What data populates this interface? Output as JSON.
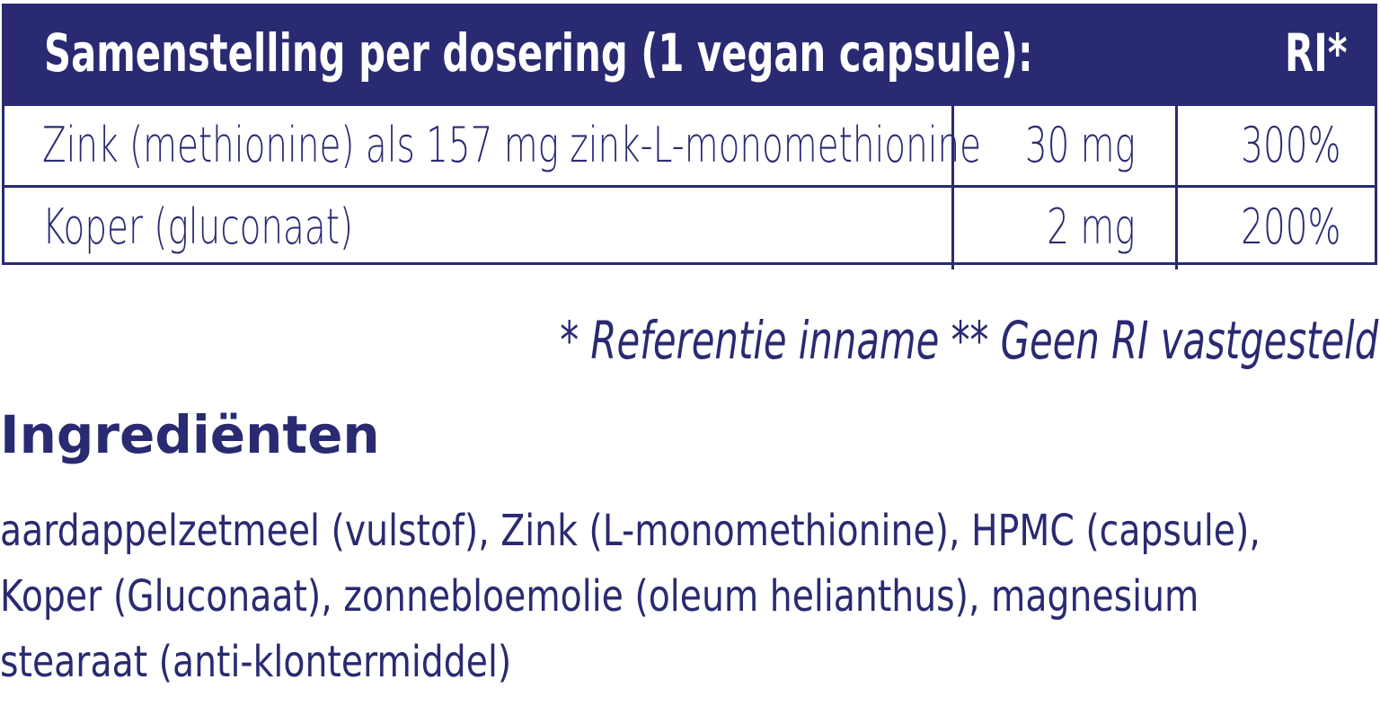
{
  "table": {
    "header": {
      "title": "Samenstelling per dosering (1 vegan capsule):",
      "ri": "RI*"
    },
    "rows": [
      {
        "name": "Zink (methionine) als 157 mg zink-L-monomethionine",
        "amount": "30 mg",
        "ri": "300%"
      },
      {
        "name": "Koper (gluconaat)",
        "amount": "2 mg",
        "ri": "200%"
      }
    ]
  },
  "footnote": "* Referentie inname  ** Geen RI vastgesteld",
  "ingredients": {
    "heading": "Ingrediënten",
    "lines": [
      "aardappelzetmeel (vulstof), Zink (L-monomethionine), HPMC (capsule),",
      "Koper (Gluconaat), zonnebloemolie (oleum helianthus), magnesium",
      "stearaat (anti-klontermiddel)"
    ]
  },
  "colors": {
    "brand": "#2a2a72",
    "background": "#ffffff"
  }
}
